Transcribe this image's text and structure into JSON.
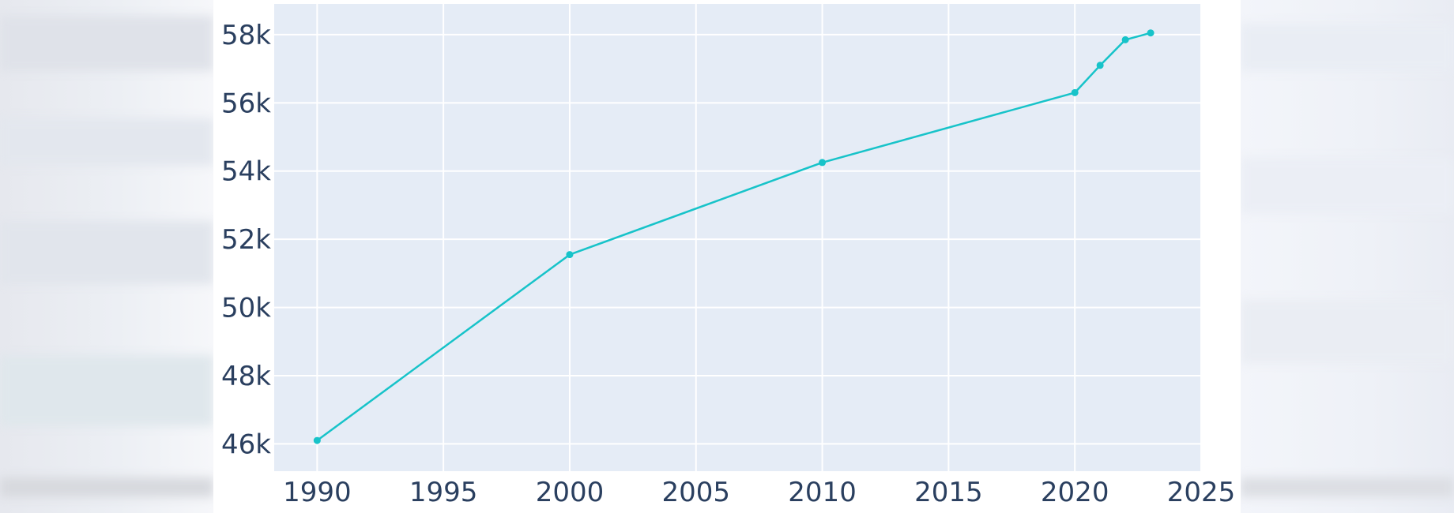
{
  "chart_data": {
    "type": "line",
    "title": "",
    "xlabel": "",
    "ylabel": "",
    "x": [
      1990,
      2000,
      2010,
      2020,
      2021,
      2022,
      2023
    ],
    "series": [
      {
        "values": [
          46100,
          51550,
          54250,
          56300,
          57100,
          57850,
          58050
        ]
      }
    ],
    "xlim": [
      1988.3,
      2025
    ],
    "ylim": [
      45200,
      58900
    ],
    "x_ticks": [
      1990,
      1995,
      2000,
      2005,
      2010,
      2015,
      2020,
      2025
    ],
    "x_tick_labels": [
      "1990",
      "1995",
      "2000",
      "2005",
      "2010",
      "2015",
      "2020",
      "2025"
    ],
    "y_ticks": [
      46000,
      48000,
      50000,
      52000,
      54000,
      56000,
      58000
    ],
    "y_tick_labels": [
      "46k",
      "48k",
      "50k",
      "52k",
      "54k",
      "56k",
      "58k"
    ],
    "grid": true,
    "legend": "none",
    "colors": {
      "line": "#17c3c9",
      "plot_background": "#e5ecf6",
      "grid": "#ffffff",
      "tick_text": "#2a3f5f"
    }
  }
}
